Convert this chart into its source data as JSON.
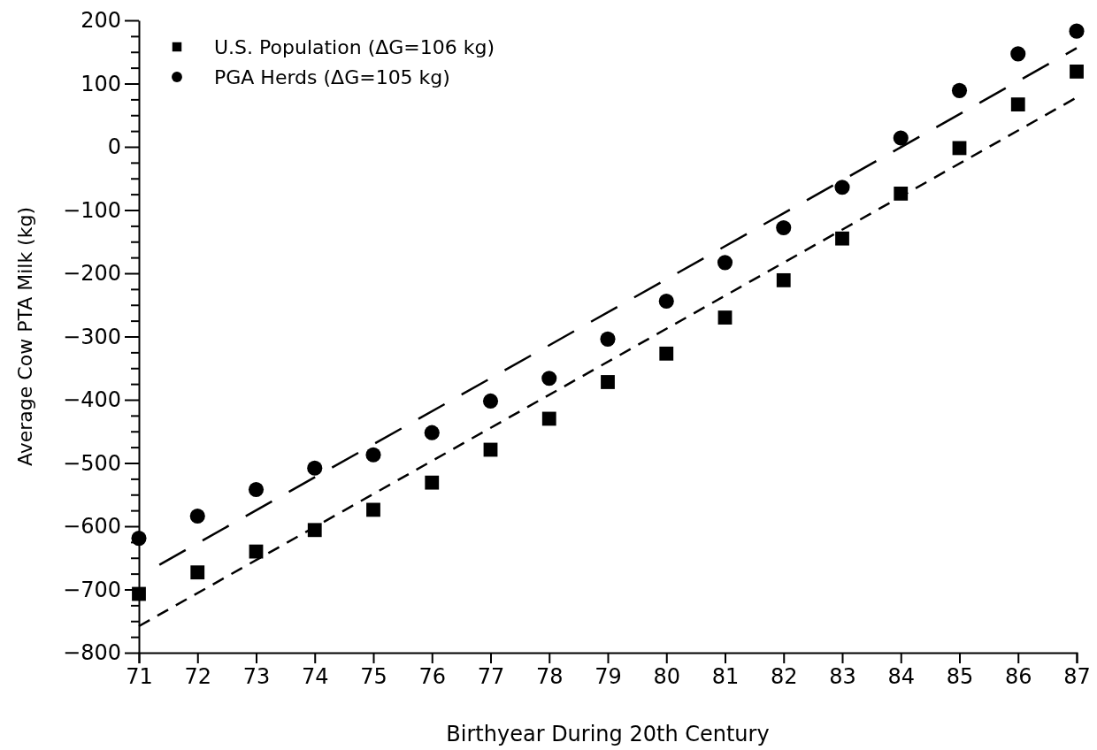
{
  "chart_data": {
    "type": "scatter",
    "xlabel": "Birthyear During 20th Century",
    "ylabel": "Average Cow PTA Milk (kg)",
    "x": [
      71,
      72,
      73,
      74,
      75,
      76,
      77,
      78,
      79,
      80,
      81,
      82,
      83,
      84,
      85,
      86,
      87
    ],
    "series": [
      {
        "name": "U.S. Population (ΔG=106 kg)",
        "color": "#000000",
        "marker": "square",
        "values": [
          -707,
          -673,
          -640,
          -606,
          -574,
          -531,
          -479,
          -430,
          -372,
          -327,
          -270,
          -211,
          -145,
          -74,
          -2,
          67,
          119
        ]
      },
      {
        "name": "PGA Herds (ΔG=105 kg)",
        "color": "#000000",
        "marker": "circle",
        "values": [
          -619,
          -584,
          -542,
          -508,
          -487,
          -452,
          -402,
          -366,
          -304,
          -244,
          -183,
          -128,
          -64,
          14,
          89,
          147,
          183
        ]
      },
      {
        "type": "line",
        "color": "#000000",
        "line_style": "dashed",
        "x": [
          71,
          87
        ],
        "values": [
          -758,
          78
        ]
      },
      {
        "type": "line",
        "color": "#000000",
        "line_style": "dashed",
        "x": [
          71.35,
          87
        ],
        "values": [
          -661,
          156
        ]
      }
    ],
    "xlim": [
      71,
      87
    ],
    "xticks": [
      71,
      72,
      73,
      74,
      75,
      76,
      77,
      78,
      79,
      80,
      81,
      82,
      83,
      84,
      85,
      86,
      87
    ],
    "ylim": [
      -800,
      200
    ],
    "yticks": [
      -800,
      {
        "value": -775,
        "label": null
      },
      {
        "value": -750,
        "label": null
      },
      {
        "value": -725,
        "label": null
      },
      -700,
      {
        "value": -675,
        "label": null
      },
      {
        "value": -650,
        "label": null
      },
      {
        "value": -625,
        "label": null
      },
      -600,
      {
        "value": -575,
        "label": null
      },
      {
        "value": -550,
        "label": null
      },
      {
        "value": -525,
        "label": null
      },
      -500,
      {
        "value": -475,
        "label": null
      },
      {
        "value": -450,
        "label": null
      },
      {
        "value": -425,
        "label": null
      },
      -400,
      {
        "value": -375,
        "label": null
      },
      {
        "value": -350,
        "label": null
      },
      {
        "value": -325,
        "label": null
      },
      -300,
      {
        "value": -275,
        "label": null
      },
      {
        "value": -250,
        "label": null
      },
      {
        "value": -225,
        "label": null
      },
      -200,
      {
        "value": -175,
        "label": null
      },
      {
        "value": -150,
        "label": null
      },
      {
        "value": -125,
        "label": null
      },
      -100,
      {
        "value": -75,
        "label": null
      },
      {
        "value": -50,
        "label": null
      },
      {
        "value": -25,
        "label": null
      },
      0,
      {
        "value": 25,
        "label": null
      },
      {
        "value": 50,
        "label": null
      },
      {
        "value": 75,
        "label": null
      },
      100,
      {
        "value": 125,
        "label": null
      },
      {
        "value": 150,
        "label": null
      },
      {
        "value": 175,
        "label": null
      },
      200
    ],
    "grid": false,
    "legend": "top left"
  }
}
